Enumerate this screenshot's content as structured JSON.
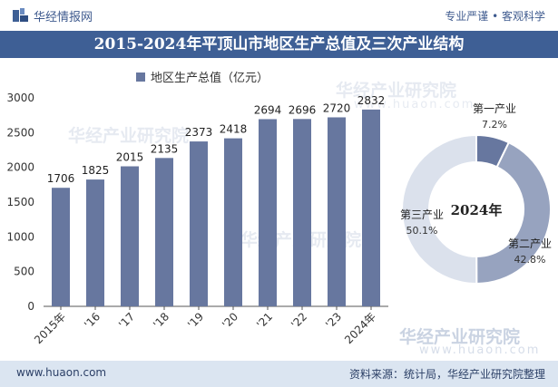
{
  "header": {
    "brand": "华经情报网",
    "tagline": "专业严谨 • 客观科学"
  },
  "title": "2015-2024年平顶山市地区生产总值及三次产业结构",
  "legend": {
    "label": "地区生产总值（亿元）"
  },
  "watermark": {
    "text": "华经产业研究院",
    "domain": "www.huaon.com"
  },
  "footer": {
    "site": "www.huaon.com",
    "source": "资料来源：统计局，华经产业研究院整理"
  },
  "colors": {
    "bar": "#67779f",
    "title_bg": "#3e5f95",
    "footer_bg": "#dbe5f1",
    "primary": "#67779f",
    "secondary": "#97a3bf",
    "tertiary": "#dbe1ec"
  },
  "chart_data": [
    {
      "type": "bar",
      "categories": [
        "2015年",
        "'16",
        "'17",
        "'18",
        "'19",
        "'20",
        "'21",
        "'22",
        "'23",
        "2024年"
      ],
      "series": [
        {
          "name": "地区生产总值（亿元）",
          "values": [
            1706,
            1825,
            2015,
            2135,
            2373,
            2418,
            2694,
            2696,
            2720,
            2832
          ]
        }
      ],
      "ylim": [
        0,
        3000
      ],
      "yticks": [
        0,
        500,
        1000,
        1500,
        2000,
        2500,
        3000
      ],
      "grid": false,
      "legend": "top-left"
    },
    {
      "type": "pie",
      "donut": true,
      "center_label": "2024年",
      "slices": [
        {
          "label": "第一产业",
          "value": 7.2,
          "display": "7.2%"
        },
        {
          "label": "第二产业",
          "value": 42.8,
          "display": "42.8%"
        },
        {
          "label": "第三产业",
          "value": 50.1,
          "display": "50.1%"
        }
      ]
    }
  ]
}
